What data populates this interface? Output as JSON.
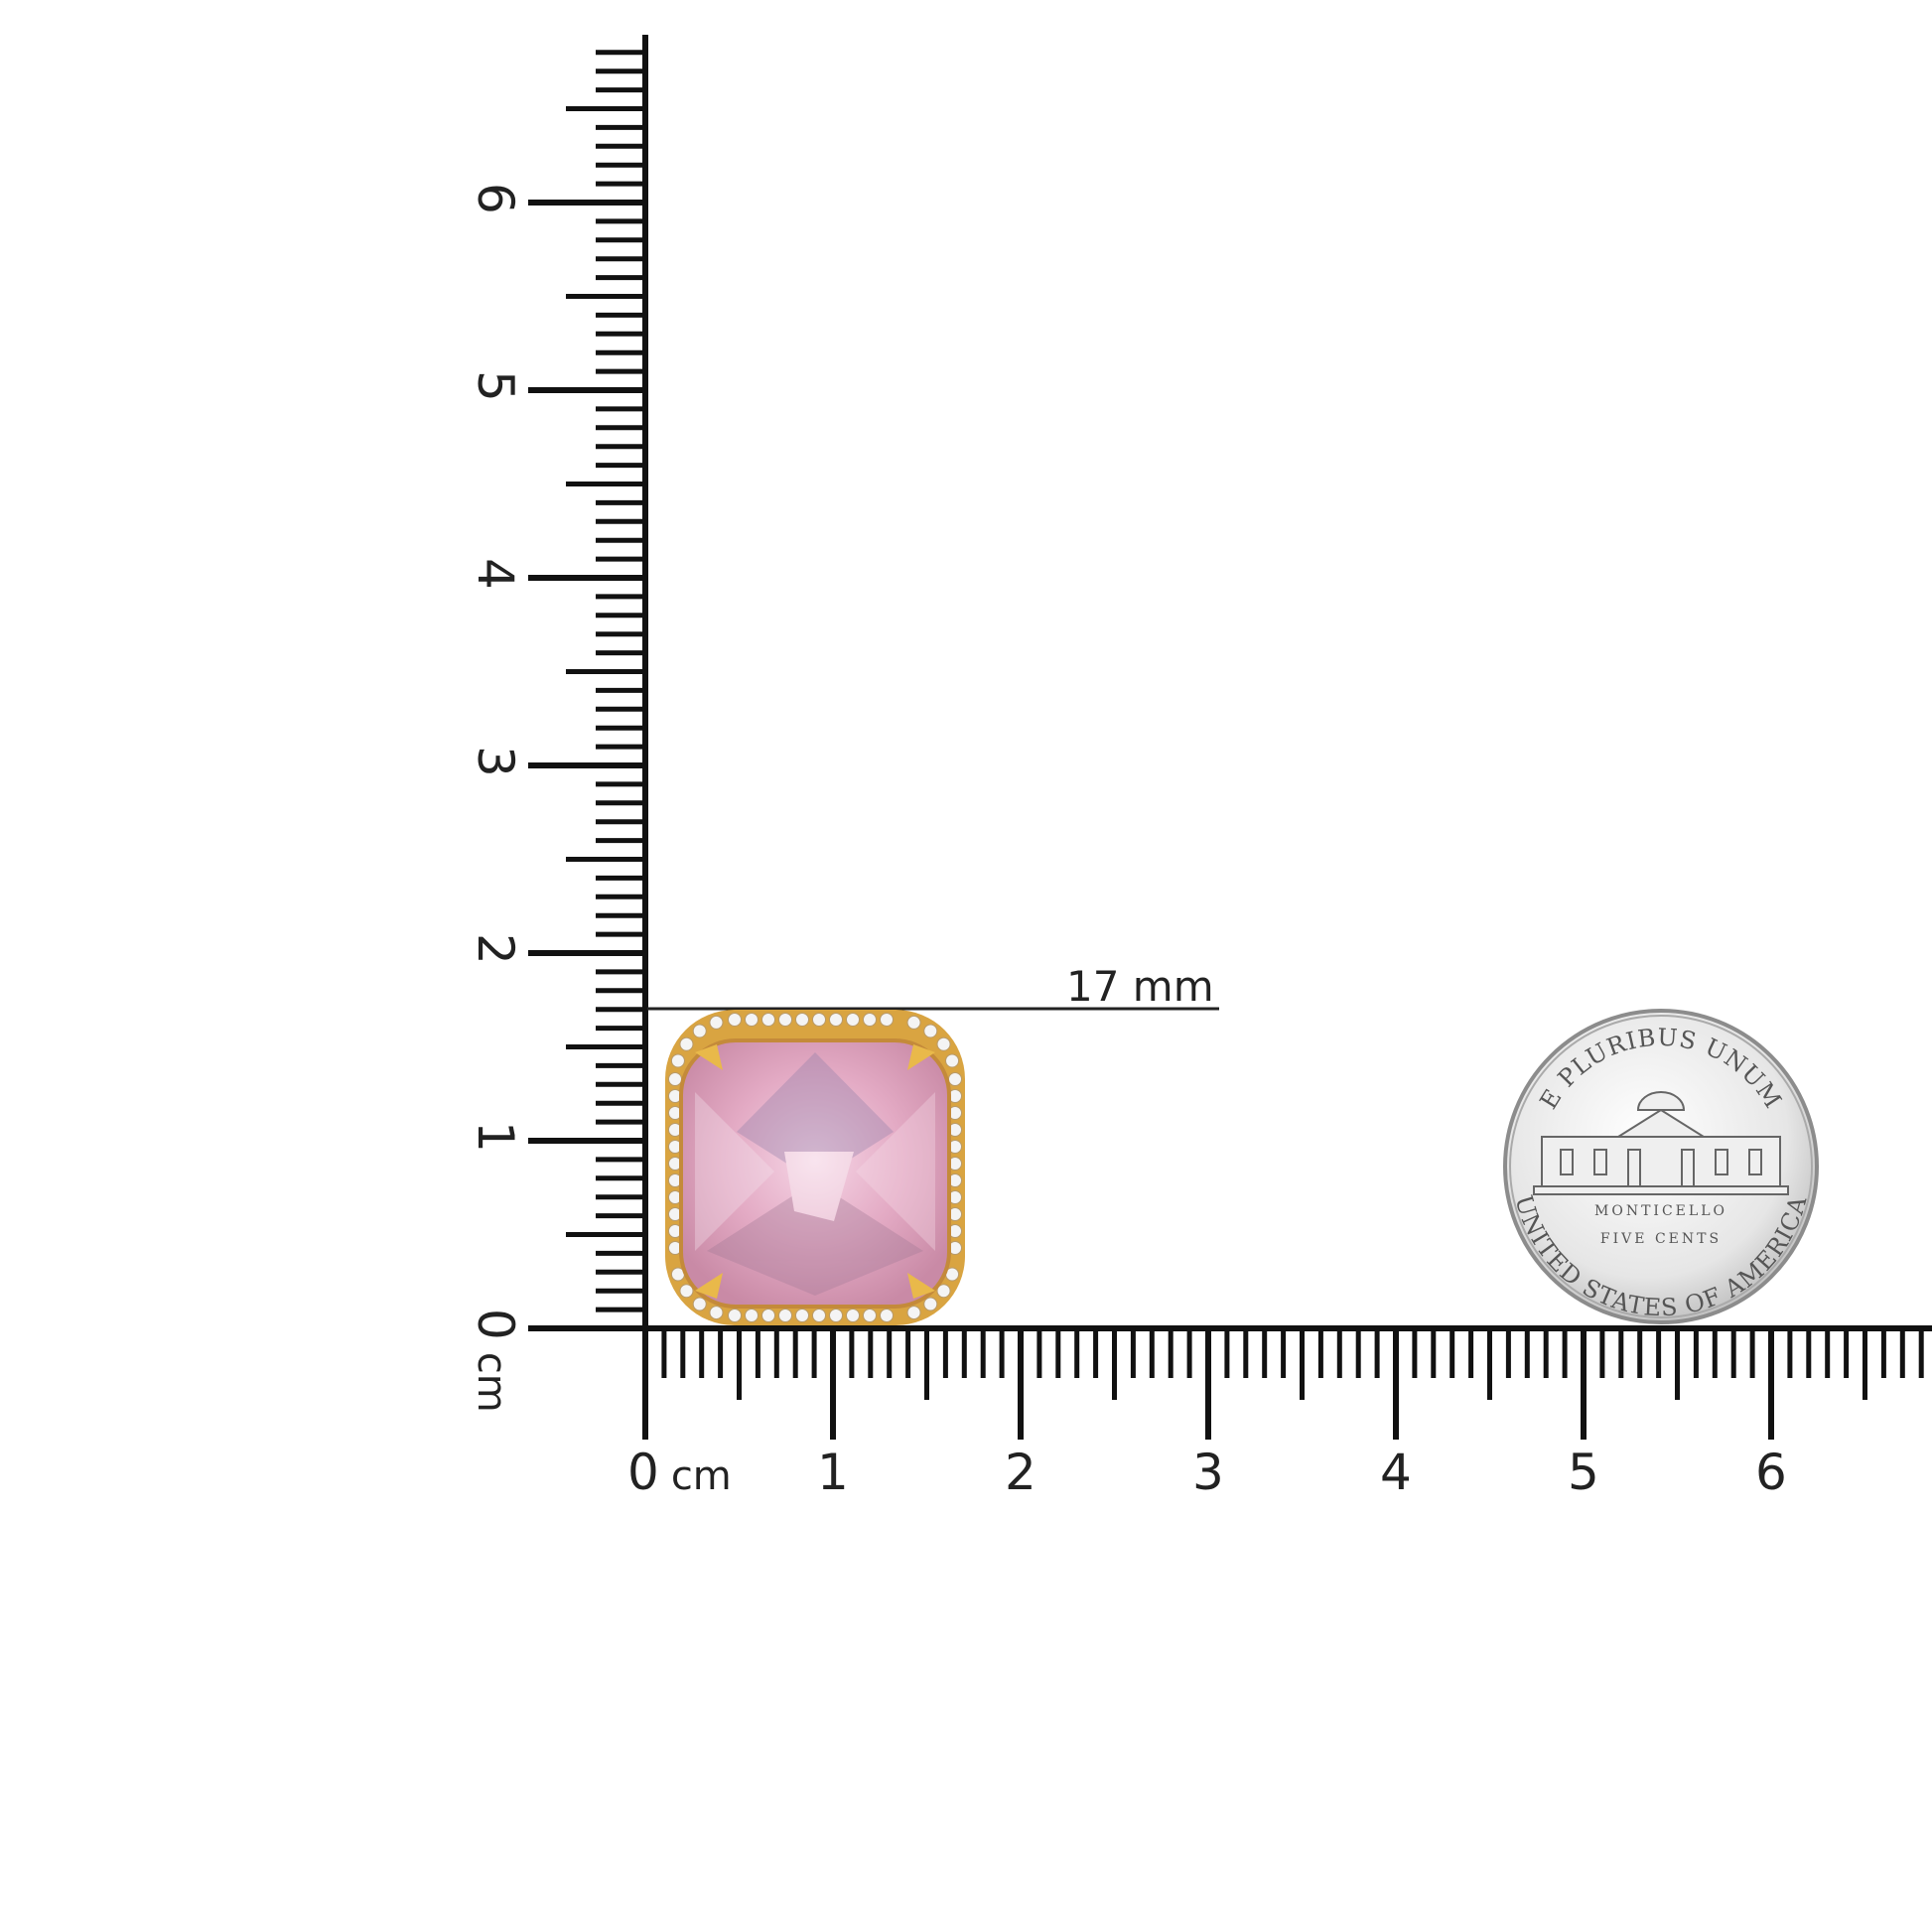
{
  "ruler": {
    "unit": "cm",
    "vertical_labels": [
      "0",
      "1",
      "2",
      "3",
      "4",
      "5",
      "6"
    ],
    "horizontal_labels": [
      "0",
      "1",
      "2",
      "3",
      "4",
      "5",
      "6"
    ]
  },
  "dimension": {
    "label": "17 mm",
    "value_mm": 17
  },
  "gem": {
    "stone_color": "#e8b6cc",
    "metal_color": "#d9a441",
    "halo_stone_color": "#f4f4f4"
  },
  "coin": {
    "top_legend": "E PLURIBUS UNUM",
    "building": "MONTICELLO",
    "denomination": "FIVE CENTS",
    "bottom_legend": "UNITED STATES OF AMERICA",
    "color": "#d8d8d8"
  }
}
